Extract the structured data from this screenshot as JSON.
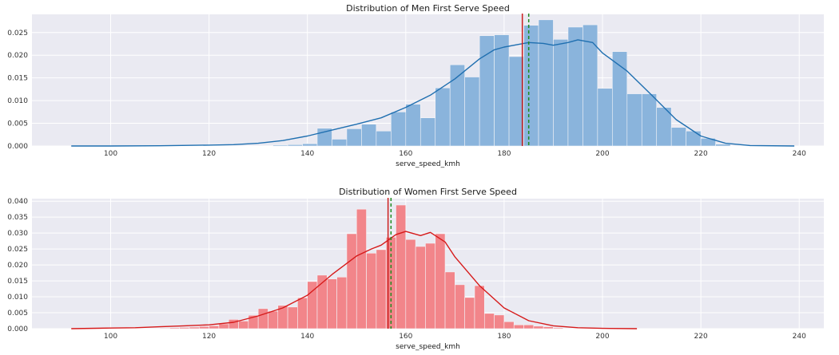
{
  "chart_data": [
    {
      "type": "bar",
      "title": "Distribution of Men First Serve Speed",
      "xlabel": "serve_speed_kmh",
      "ylabel": "",
      "xlim": [
        84,
        245
      ],
      "ylim": [
        0,
        0.029
      ],
      "xticks": [
        100,
        120,
        140,
        160,
        180,
        200,
        220,
        240
      ],
      "yticks": [
        0.0,
        0.005,
        0.01,
        0.015,
        0.02,
        0.025
      ],
      "ytick_labels": [
        "0.000",
        "0.005",
        "0.010",
        "0.015",
        "0.020",
        "0.025"
      ],
      "bins": [
        [
          133,
          136,
          0.0002
        ],
        [
          136,
          139,
          0.0003
        ],
        [
          139,
          142,
          0.0005
        ],
        [
          142,
          145,
          0.0039
        ],
        [
          145,
          148,
          0.0015
        ],
        [
          148,
          151,
          0.0038
        ],
        [
          151,
          154,
          0.0048
        ],
        [
          154,
          157,
          0.0033
        ],
        [
          157,
          160,
          0.0075
        ],
        [
          160,
          163,
          0.0092
        ],
        [
          163,
          166,
          0.0062
        ],
        [
          166,
          169,
          0.0128
        ],
        [
          169,
          172,
          0.0179
        ],
        [
          172,
          175,
          0.0152
        ],
        [
          175,
          178,
          0.0243
        ],
        [
          178,
          181,
          0.0245
        ],
        [
          181,
          184,
          0.0197
        ],
        [
          184,
          187,
          0.0266
        ],
        [
          187,
          190,
          0.0278
        ],
        [
          190,
          193,
          0.0235
        ],
        [
          193,
          196,
          0.0262
        ],
        [
          196,
          199,
          0.0267
        ],
        [
          199,
          202,
          0.0127
        ],
        [
          202,
          205,
          0.0208
        ],
        [
          205,
          208,
          0.0115
        ],
        [
          208,
          211,
          0.0115
        ],
        [
          211,
          214,
          0.0085
        ],
        [
          214,
          217,
          0.0041
        ],
        [
          217,
          220,
          0.0033
        ],
        [
          220,
          223,
          0.0017
        ],
        [
          223,
          226,
          0.0004
        ]
      ],
      "kde": {
        "x": [
          92,
          100,
          110,
          120,
          125,
          130,
          135,
          140,
          145,
          150,
          155,
          160,
          165,
          170,
          175,
          178,
          180,
          183,
          185,
          188,
          190,
          193,
          195,
          198,
          200,
          205,
          210,
          215,
          220,
          225,
          230,
          239
        ],
        "y": [
          0.0,
          0.0,
          5e-05,
          0.0002,
          0.0003,
          0.0006,
          0.0012,
          0.0022,
          0.0035,
          0.0048,
          0.0062,
          0.0085,
          0.0112,
          0.0148,
          0.0192,
          0.0212,
          0.0218,
          0.0224,
          0.0228,
          0.0226,
          0.0222,
          0.0228,
          0.0234,
          0.0228,
          0.0205,
          0.0165,
          0.0112,
          0.0058,
          0.0022,
          0.0006,
          0.0001,
          0.0
        ]
      },
      "mean": 183.7,
      "median": 185.0,
      "colors": {
        "bars": "#8ab4dc",
        "kde": "#1f6fb0",
        "mean": "#cc1f1f",
        "median": "#1e8a1e"
      }
    },
    {
      "type": "bar",
      "title": "Distribution of Women First Serve Speed",
      "xlabel": "serve_speed_kmh",
      "ylabel": "",
      "xlim": [
        84,
        245
      ],
      "ylim": [
        0,
        0.0408
      ],
      "xticks": [
        100,
        120,
        140,
        160,
        180,
        200,
        220,
        240
      ],
      "yticks": [
        0.0,
        0.005,
        0.01,
        0.015,
        0.02,
        0.025,
        0.03,
        0.035,
        0.04
      ],
      "ytick_labels": [
        "0.000",
        "0.005",
        "0.010",
        "0.015",
        "0.020",
        "0.025",
        "0.030",
        "0.035",
        "0.040"
      ],
      "bins": [
        [
          110,
          112,
          0.0002
        ],
        [
          112,
          114,
          0.0003
        ],
        [
          114,
          116,
          0.0004
        ],
        [
          116,
          118,
          0.0005
        ],
        [
          118,
          120,
          0.0007
        ],
        [
          120,
          122,
          0.0009
        ],
        [
          122,
          124,
          0.0015
        ],
        [
          124,
          126,
          0.0029
        ],
        [
          126,
          128,
          0.0024
        ],
        [
          128,
          130,
          0.0042
        ],
        [
          130,
          132,
          0.0063
        ],
        [
          132,
          134,
          0.0055
        ],
        [
          134,
          136,
          0.0073
        ],
        [
          136,
          138,
          0.0068
        ],
        [
          138,
          140,
          0.0097
        ],
        [
          140,
          142,
          0.0148
        ],
        [
          142,
          144,
          0.0168
        ],
        [
          144,
          146,
          0.0156
        ],
        [
          146,
          148,
          0.0162
        ],
        [
          148,
          150,
          0.0298
        ],
        [
          150,
          152,
          0.0375
        ],
        [
          152,
          154,
          0.0237
        ],
        [
          154,
          156,
          0.0248
        ],
        [
          156,
          158,
          0.0287
        ],
        [
          158,
          160,
          0.0388
        ],
        [
          160,
          162,
          0.028
        ],
        [
          162,
          164,
          0.0258
        ],
        [
          164,
          166,
          0.0268
        ],
        [
          166,
          168,
          0.0298
        ],
        [
          168,
          170,
          0.0178
        ],
        [
          170,
          172,
          0.0138
        ],
        [
          172,
          174,
          0.0098
        ],
        [
          174,
          176,
          0.0135
        ],
        [
          176,
          178,
          0.0048
        ],
        [
          178,
          180,
          0.0043
        ],
        [
          180,
          182,
          0.0022
        ],
        [
          182,
          184,
          0.0012
        ],
        [
          184,
          186,
          0.0012
        ],
        [
          186,
          188,
          0.0008
        ],
        [
          188,
          190,
          0.0006
        ],
        [
          190,
          192,
          0.0003
        ]
      ],
      "kde": {
        "x": [
          92,
          100,
          105,
          110,
          115,
          120,
          125,
          130,
          135,
          140,
          145,
          150,
          153,
          155,
          158,
          160,
          163,
          165,
          168,
          170,
          175,
          180,
          185,
          190,
          195,
          200,
          207
        ],
        "y": [
          0.0,
          0.0002,
          0.0003,
          0.0006,
          0.0009,
          0.0012,
          0.002,
          0.004,
          0.0065,
          0.0105,
          0.017,
          0.0228,
          0.025,
          0.0262,
          0.0295,
          0.0305,
          0.0292,
          0.0302,
          0.0272,
          0.0225,
          0.0135,
          0.0065,
          0.0025,
          0.0009,
          0.0003,
          0.0001,
          0.0
        ]
      },
      "mean": 156.4,
      "median": 157.0,
      "colors": {
        "bars": "#f2858a",
        "kde": "#d61a1a",
        "mean": "#cc1f1f",
        "median": "#1e8a1e"
      }
    }
  ]
}
